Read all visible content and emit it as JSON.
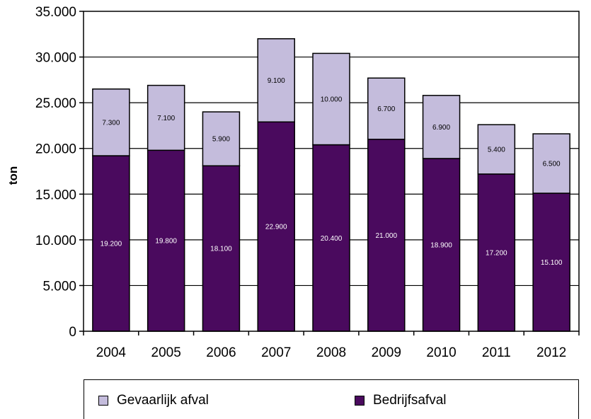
{
  "chart_data": {
    "type": "bar",
    "stacked": true,
    "categories": [
      "2004",
      "2005",
      "2006",
      "2007",
      "2008",
      "2009",
      "2010",
      "2011",
      "2012"
    ],
    "series": [
      {
        "name": "Bedrijfsafval",
        "color": "#4a0a5e",
        "values": [
          19200,
          19800,
          18100,
          22900,
          20400,
          21000,
          18900,
          17200,
          15100
        ],
        "labels": [
          "19.200",
          "19.800",
          "18.100",
          "22.900",
          "20.400",
          "21.000",
          "18.900",
          "17.200",
          "15.100"
        ]
      },
      {
        "name": "Gevaarlijk afval",
        "color": "#c4bcdc",
        "values": [
          7300,
          7100,
          5900,
          9100,
          10000,
          6700,
          6900,
          5400,
          6500
        ],
        "labels": [
          "7.300",
          "7.100",
          "5.900",
          "9.100",
          "10.000",
          "6.700",
          "6.900",
          "5.400",
          "6.500"
        ]
      }
    ],
    "ylabel": "ton",
    "ylim": [
      0,
      35000
    ],
    "yticks": [
      0,
      5000,
      10000,
      15000,
      20000,
      25000,
      30000,
      35000
    ],
    "ytick_labels": [
      "0",
      "5.000",
      "10.000",
      "15.000",
      "20.000",
      "25.000",
      "30.000",
      "35.000"
    ],
    "grid": true,
    "legend_position": "bottom"
  },
  "legend": [
    {
      "label": "Gevaarlijk afval",
      "color": "#c4bcdc"
    },
    {
      "label": "Bedrijfsafval",
      "color": "#4a0a5e"
    }
  ]
}
